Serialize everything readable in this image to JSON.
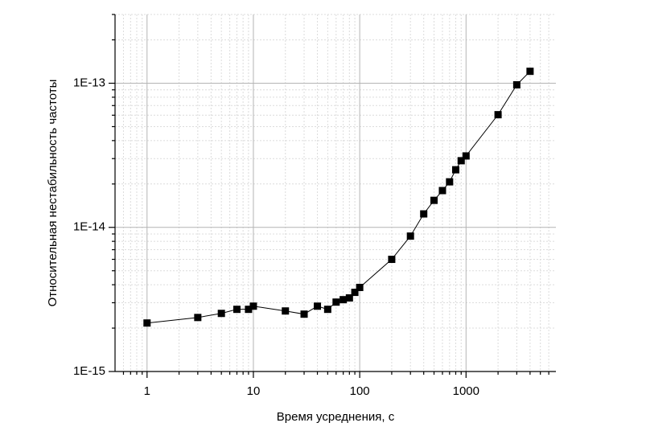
{
  "chart_data": {
    "type": "line",
    "x_label": "Время усреднения, с",
    "y_label": "Относительная нестабильность частоты",
    "x": [
      1,
      3,
      5,
      7,
      9,
      10,
      20,
      30,
      40,
      50,
      60,
      70,
      80,
      90,
      100,
      200,
      300,
      400,
      500,
      600,
      700,
      800,
      900,
      1000,
      2000,
      3000,
      4000
    ],
    "values": [
      2.17e-15,
      2.37e-15,
      2.53e-15,
      2.7e-15,
      2.7e-15,
      2.84e-15,
      2.63e-15,
      2.5e-15,
      2.84e-15,
      2.7e-15,
      3.03e-15,
      3.15e-15,
      3.24e-15,
      3.54e-15,
      3.83e-15,
      6e-15,
      8.7e-15,
      1.24e-14,
      1.54e-14,
      1.8e-14,
      2.07e-14,
      2.51e-14,
      2.9e-14,
      3.13e-14,
      6.05e-14,
      9.75e-14,
      1.21e-13
    ],
    "color": "#000000",
    "x_log": true,
    "y_log": true,
    "xlim": [
      0.5,
      7000
    ],
    "ylim": [
      1e-15,
      3e-13
    ],
    "xticks": [
      1,
      10,
      100,
      1000
    ],
    "yticks": [
      {
        "value": 1e-15,
        "label": "1E-15"
      },
      {
        "value": 1e-14,
        "label": "1E-14"
      },
      {
        "value": 1e-13,
        "label": "1E-13"
      }
    ],
    "xminorticks": [
      0.6,
      0.7,
      0.8,
      0.9,
      2,
      3,
      4,
      5,
      6,
      7,
      8,
      9,
      20,
      30,
      40,
      50,
      60,
      70,
      80,
      90,
      200,
      300,
      400,
      500,
      600,
      700,
      800,
      900,
      2000,
      3000,
      4000,
      5000,
      6000
    ],
    "yminorticks": [
      2e-15,
      3e-15,
      4e-15,
      5e-15,
      6e-15,
      7e-15,
      8e-15,
      9e-15,
      2e-14,
      3e-14,
      4e-14,
      5e-14,
      6e-14,
      7e-14,
      8e-14,
      9e-14,
      2e-13,
      3e-13
    ],
    "grid": true
  }
}
